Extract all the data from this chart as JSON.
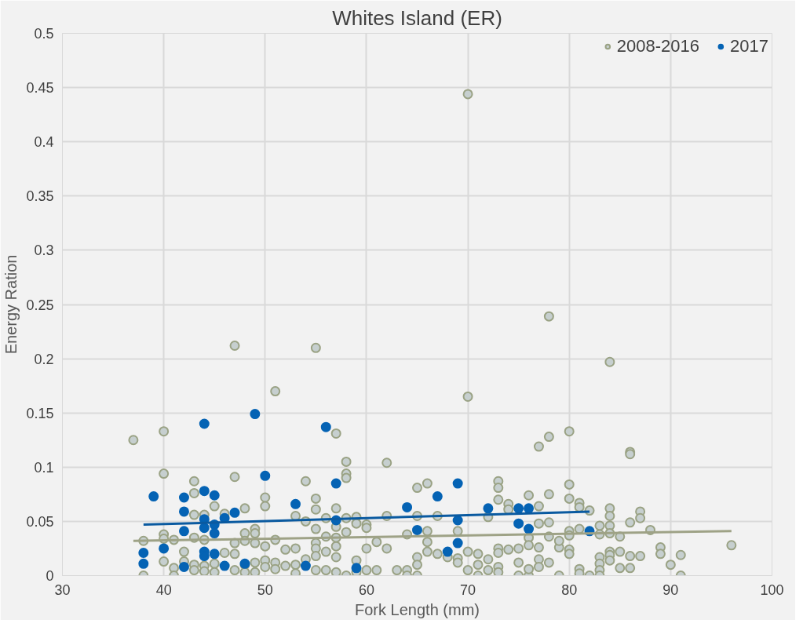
{
  "chart_data": {
    "type": "scatter",
    "title": "Whites Island (ER)",
    "xlabel": "Fork Length (mm)",
    "ylabel": "Energy Ration",
    "xlim": [
      30,
      100
    ],
    "xticks": [
      30,
      40,
      50,
      60,
      70,
      80,
      90,
      100
    ],
    "ylim": [
      0,
      0.5
    ],
    "yticks": [
      0,
      0.05,
      0.1,
      0.15,
      0.2,
      0.25,
      0.3,
      0.35,
      0.4,
      0.45,
      0.5
    ],
    "grid": true,
    "legend": "top right",
    "marker": "circle",
    "series": [
      {
        "name": "2008-2016",
        "color": "#c6cfcf",
        "x": [
          37,
          40,
          40,
          47,
          51,
          55,
          57,
          58,
          62,
          70,
          70,
          77,
          78,
          78,
          80,
          84,
          86,
          86,
          96,
          91,
          91,
          90,
          89,
          89,
          88,
          87,
          87,
          87,
          86,
          86,
          86,
          85,
          85,
          85,
          84,
          84,
          84,
          84,
          84,
          84,
          84,
          83,
          83,
          83,
          83,
          83,
          83,
          82,
          82,
          81,
          81,
          81,
          81,
          81,
          80,
          80,
          80,
          80,
          80,
          80,
          79,
          79,
          79,
          78,
          78,
          78,
          78,
          77,
          77,
          77,
          77,
          77,
          76,
          76,
          76,
          76,
          76,
          75,
          75,
          75,
          74,
          74,
          74,
          73,
          73,
          73,
          73,
          73,
          73,
          73,
          72,
          72,
          72,
          71,
          71,
          71,
          70,
          70,
          69,
          69,
          69,
          68,
          67,
          67,
          66,
          66,
          66,
          66,
          65,
          65,
          65,
          65,
          65,
          64,
          64,
          64,
          63,
          62,
          62,
          61,
          61,
          60,
          60,
          60,
          60,
          59,
          59,
          59,
          59,
          58,
          58,
          58,
          58,
          58,
          57,
          57,
          57,
          57,
          57,
          57,
          56,
          56,
          56,
          56,
          55,
          55,
          55,
          55,
          55,
          55,
          55,
          54,
          54,
          54,
          53,
          53,
          53,
          53,
          52,
          52,
          51,
          51,
          51,
          50,
          50,
          50,
          50,
          50,
          49,
          49,
          49,
          49,
          49,
          48,
          48,
          48,
          48,
          48,
          47,
          47,
          47,
          47,
          46,
          46,
          45,
          45,
          45,
          44,
          44,
          44,
          44,
          43,
          43,
          43,
          43,
          43,
          43,
          42,
          42,
          41,
          41,
          41,
          40,
          40,
          40,
          38,
          38
        ],
        "values": [
          0.125,
          0.133,
          0.094,
          0.212,
          0.17,
          0.21,
          0.131,
          0.105,
          0.104,
          0.444,
          0.165,
          0.119,
          0.239,
          0.128,
          0.133,
          0.197,
          0.114,
          0.112,
          0.028,
          0.019,
          0.0,
          0.01,
          0.026,
          0.02,
          0.042,
          0.059,
          0.053,
          0.018,
          0.049,
          0.018,
          0.007,
          0.036,
          0.022,
          0.007,
          0.062,
          0.055,
          0.046,
          0.039,
          0.022,
          0.019,
          0.014,
          0.046,
          0.038,
          0.017,
          0.011,
          0.005,
          0.0,
          0.06,
          0.0,
          0.067,
          0.063,
          0.043,
          0.006,
          0.002,
          0.084,
          0.071,
          0.041,
          0.037,
          0.024,
          0.02,
          0.0,
          0.026,
          0.032,
          0.075,
          0.049,
          0.036,
          0.012,
          0.064,
          0.048,
          0.026,
          0.015,
          0.008,
          0.074,
          0.035,
          0.028,
          0.0,
          0.006,
          0.025,
          0.012,
          0.0,
          0.066,
          0.061,
          0.024,
          0.087,
          0.081,
          0.07,
          0.025,
          0.021,
          0.008,
          0.003,
          0.054,
          0.015,
          0.005,
          0.02,
          0.01,
          0.0,
          0.022,
          0.005,
          0.041,
          0.016,
          0.012,
          0.017,
          0.055,
          0.02,
          0.085,
          0.041,
          0.031,
          0.022,
          0.081,
          0.055,
          0.017,
          0.01,
          0.0,
          0.038,
          0.005,
          0.0,
          0.005,
          0.055,
          0.025,
          0.031,
          0.005,
          0.047,
          0.044,
          0.025,
          0.005,
          0.054,
          0.048,
          0.014,
          0.003,
          0.094,
          0.09,
          0.053,
          0.04,
          0.0,
          0.062,
          0.045,
          0.035,
          0.027,
          0.017,
          0.003,
          0.053,
          0.036,
          0.022,
          0.005,
          0.071,
          0.061,
          0.043,
          0.03,
          0.025,
          0.018,
          0.005,
          0.087,
          0.05,
          0.015,
          0.055,
          0.025,
          0.01,
          0.002,
          0.024,
          0.009,
          0.033,
          0.012,
          0.006,
          0.072,
          0.064,
          0.027,
          0.014,
          0.008,
          0.043,
          0.039,
          0.03,
          0.012,
          0.003,
          0.062,
          0.039,
          0.032,
          0.01,
          0.003,
          0.091,
          0.03,
          0.02,
          0.005,
          0.057,
          0.021,
          0.064,
          0.011,
          0.003,
          0.056,
          0.033,
          0.009,
          0.004,
          0.087,
          0.076,
          0.056,
          0.035,
          0.01,
          0.005,
          0.022,
          0.013,
          0.033,
          0.007,
          0.0,
          0.038,
          0.034,
          0.013,
          0.032,
          0.0
        ]
      },
      {
        "name": "2017",
        "color": "#0563b4",
        "x": [
          38,
          38,
          39,
          40,
          42,
          42,
          42,
          42,
          44,
          44,
          44,
          44,
          44,
          44,
          45,
          45,
          45,
          45,
          46,
          46,
          47,
          48,
          49,
          50,
          53,
          54,
          56,
          57,
          57,
          59,
          64,
          65,
          67,
          68,
          69,
          69,
          69,
          72,
          75,
          75,
          76,
          76,
          82
        ],
        "values": [
          0.021,
          0.011,
          0.073,
          0.025,
          0.072,
          0.059,
          0.041,
          0.008,
          0.14,
          0.078,
          0.052,
          0.044,
          0.022,
          0.018,
          0.074,
          0.047,
          0.039,
          0.02,
          0.053,
          0.009,
          0.058,
          0.011,
          0.149,
          0.092,
          0.066,
          0.009,
          0.137,
          0.085,
          0.051,
          0.007,
          0.063,
          0.042,
          0.073,
          0.022,
          0.085,
          0.051,
          0.03,
          0.062,
          0.062,
          0.048,
          0.062,
          0.043,
          0.041
        ]
      },
      {
        "type": "line",
        "marker": "none",
        "color": "#9ea286",
        "x": [
          37,
          96
        ],
        "values": [
          0.032,
          0.041
        ]
      },
      {
        "type": "line",
        "marker": "none",
        "color": "#0a5aa0",
        "x": [
          38,
          82
        ],
        "values": [
          0.047,
          0.059
        ]
      }
    ]
  }
}
